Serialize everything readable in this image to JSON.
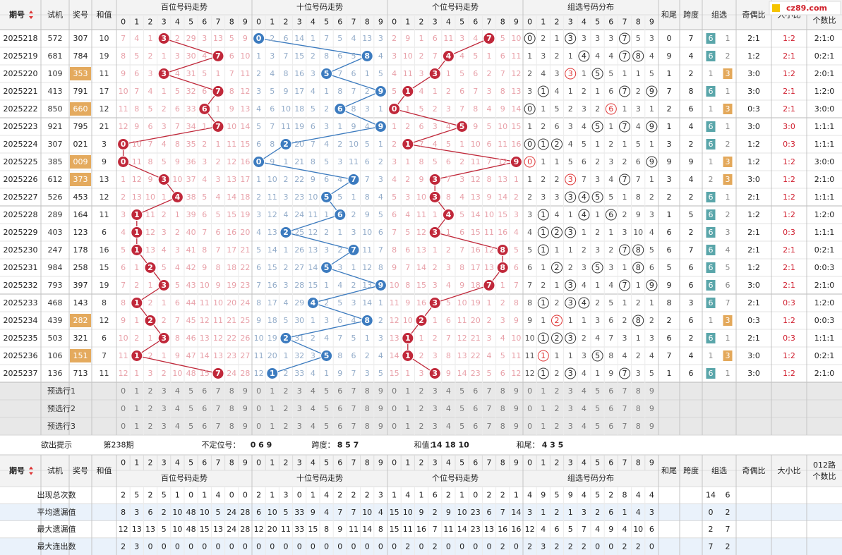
{
  "logo": "cz89.com",
  "headers": {
    "period": "期号",
    "test": "试机",
    "draw": "奖号",
    "sum": "和值",
    "zones": [
      "百位号码走势",
      "十位号码走势",
      "个位号码走势",
      "组选号码分布"
    ],
    "tail": "和尾",
    "span": "跨度",
    "zx": "组选",
    "oe": "奇偶比",
    "bs": "大小比",
    "r012": [
      "012路",
      "个数比"
    ]
  },
  "digits": [
    0,
    1,
    2,
    3,
    4,
    5,
    6,
    7,
    8,
    9
  ],
  "rows": [
    {
      "period": "2025218",
      "test": "572",
      "draw": "307",
      "sum": 10,
      "hundreds": [
        7,
        4,
        1,
        3,
        2,
        29,
        3,
        13,
        5,
        9
      ],
      "tens": [
        0,
        2,
        6,
        14,
        1,
        7,
        5,
        4,
        13,
        3
      ],
      "ones": [
        2,
        9,
        1,
        6,
        11,
        3,
        4,
        7,
        5,
        10
      ],
      "group": [
        0,
        2,
        1,
        3,
        3,
        3,
        3,
        7,
        5,
        3
      ],
      "tail": 0,
      "span": 7,
      "zx": [
        6,
        1
      ],
      "oe": "2:1",
      "bs": "1:2",
      "r012": "2:1:0"
    },
    {
      "period": "2025219",
      "test": "681",
      "draw": "784",
      "sum": 19,
      "hundreds": [
        8,
        5,
        2,
        1,
        3,
        30,
        4,
        7,
        6,
        10
      ],
      "tens": [
        1,
        3,
        7,
        15,
        2,
        8,
        6,
        5,
        8,
        4
      ],
      "ones": [
        3,
        10,
        2,
        7,
        4,
        4,
        5,
        1,
        6,
        11
      ],
      "group": [
        1,
        3,
        2,
        1,
        4,
        4,
        4,
        7,
        8,
        4
      ],
      "tail": 9,
      "span": 4,
      "zx": [
        6,
        2
      ],
      "oe": "1:2",
      "bs": "2:1",
      "r012": "0:2:1"
    },
    {
      "period": "2025220",
      "test": "109",
      "draw": "353",
      "sum": 11,
      "hundreds": [
        9,
        6,
        3,
        3,
        4,
        31,
        5,
        1,
        7,
        11
      ],
      "tens": [
        2,
        4,
        8,
        16,
        3,
        5,
        7,
        6,
        1,
        5
      ],
      "ones": [
        4,
        11,
        3,
        3,
        1,
        5,
        6,
        2,
        7,
        12
      ],
      "group": [
        2,
        4,
        3,
        3,
        1,
        5,
        5,
        1,
        1,
        5
      ],
      "tail": 1,
      "span": 2,
      "zx": [
        1,
        3
      ],
      "oe": "3:0",
      "bs": "1:2",
      "r012": "2:0:1"
    },
    {
      "period": "2025221",
      "test": "413",
      "draw": "791",
      "sum": 17,
      "hundreds": [
        10,
        7,
        4,
        1,
        5,
        32,
        6,
        7,
        8,
        12
      ],
      "tens": [
        3,
        5,
        9,
        17,
        4,
        1,
        8,
        7,
        2,
        9
      ],
      "ones": [
        5,
        1,
        4,
        1,
        2,
        6,
        7,
        3,
        8,
        13
      ],
      "group": [
        3,
        1,
        4,
        1,
        2,
        1,
        6,
        7,
        2,
        9
      ],
      "tail": 7,
      "span": 8,
      "zx": [
        6,
        1
      ],
      "oe": "3:0",
      "bs": "2:1",
      "r012": "1:2:0"
    },
    {
      "period": "2025222",
      "test": "850",
      "draw": "660",
      "sum": 12,
      "hundreds": [
        11,
        8,
        5,
        2,
        6,
        33,
        6,
        1,
        9,
        13
      ],
      "tens": [
        4,
        6,
        10,
        18,
        5,
        2,
        6,
        8,
        3,
        1
      ],
      "ones": [
        0,
        1,
        5,
        2,
        3,
        7,
        8,
        4,
        9,
        14
      ],
      "group": [
        0,
        1,
        5,
        2,
        3,
        2,
        6,
        1,
        3,
        1
      ],
      "tail": 2,
      "span": 6,
      "zx": [
        1,
        3
      ],
      "oe": "0:3",
      "bs": "2:1",
      "r012": "3:0:0"
    },
    {
      "period": "2025223",
      "test": "921",
      "draw": "795",
      "sum": 21,
      "hundreds": [
        12,
        9,
        6,
        3,
        7,
        34,
        1,
        7,
        10,
        14
      ],
      "tens": [
        5,
        7,
        11,
        19,
        6,
        3,
        1,
        9,
        4,
        9
      ],
      "ones": [
        1,
        2,
        6,
        3,
        4,
        5,
        9,
        5,
        10,
        15
      ],
      "group": [
        1,
        2,
        6,
        3,
        4,
        5,
        1,
        7,
        4,
        9
      ],
      "tail": 1,
      "span": 4,
      "zx": [
        6,
        1
      ],
      "oe": "3:0",
      "bs": "3:0",
      "r012": "1:1:1"
    },
    {
      "period": "2025224",
      "test": "307",
      "draw": "021",
      "sum": 3,
      "hundreds": [
        0,
        10,
        7,
        4,
        8,
        35,
        2,
        1,
        11,
        15
      ],
      "tens": [
        6,
        8,
        2,
        20,
        7,
        4,
        2,
        10,
        5,
        1
      ],
      "ones": [
        2,
        1,
        7,
        4,
        5,
        1,
        10,
        6,
        11,
        16
      ],
      "group": [
        0,
        1,
        2,
        4,
        5,
        1,
        2,
        1,
        5,
        1
      ],
      "tail": 3,
      "span": 2,
      "zx": [
        6,
        2
      ],
      "oe": "1:2",
      "bs": "0:3",
      "r012": "1:1:1"
    },
    {
      "period": "2025225",
      "test": "385",
      "draw": "009",
      "sum": 9,
      "hundreds": [
        0,
        11,
        8,
        5,
        9,
        36,
        3,
        2,
        12,
        16
      ],
      "tens": [
        0,
        9,
        1,
        21,
        8,
        5,
        3,
        11,
        6,
        2
      ],
      "ones": [
        3,
        1,
        8,
        5,
        6,
        2,
        11,
        7,
        12,
        9
      ],
      "group": [
        0,
        1,
        1,
        5,
        6,
        2,
        3,
        2,
        6,
        9
      ],
      "tail": 9,
      "span": 9,
      "zx": [
        1,
        3
      ],
      "oe": "1:2",
      "bs": "1:2",
      "r012": "3:0:0"
    },
    {
      "period": "2025226",
      "test": "612",
      "draw": "373",
      "sum": 13,
      "hundreds": [
        1,
        12,
        9,
        3,
        10,
        37,
        4,
        3,
        13,
        17
      ],
      "tens": [
        1,
        10,
        2,
        22,
        9,
        6,
        4,
        7,
        7,
        3
      ],
      "ones": [
        4,
        2,
        9,
        3,
        7,
        3,
        12,
        8,
        13,
        1
      ],
      "group": [
        1,
        2,
        2,
        3,
        7,
        3,
        4,
        7,
        7,
        1
      ],
      "tail": 3,
      "span": 4,
      "zx": [
        2,
        3
      ],
      "oe": "3:0",
      "bs": "1:2",
      "r012": "2:1:0"
    },
    {
      "period": "2025227",
      "test": "526",
      "draw": "453",
      "sum": 12,
      "hundreds": [
        2,
        13,
        10,
        1,
        4,
        38,
        5,
        4,
        14,
        18
      ],
      "tens": [
        2,
        11,
        3,
        23,
        10,
        5,
        5,
        1,
        8,
        4
      ],
      "ones": [
        5,
        3,
        10,
        3,
        8,
        4,
        13,
        9,
        14,
        2
      ],
      "group": [
        2,
        3,
        3,
        3,
        4,
        5,
        5,
        1,
        8,
        2
      ],
      "tail": 2,
      "span": 2,
      "zx": [
        6,
        1
      ],
      "oe": "2:1",
      "bs": "1:2",
      "r012": "1:1:1"
    },
    {
      "period": "2025228",
      "test": "289",
      "draw": "164",
      "sum": 11,
      "hundreds": [
        3,
        1,
        11,
        2,
        1,
        39,
        6,
        5,
        15,
        19
      ],
      "tens": [
        3,
        12,
        4,
        24,
        11,
        1,
        6,
        2,
        9,
        5
      ],
      "ones": [
        6,
        4,
        11,
        1,
        4,
        5,
        14,
        10,
        15,
        3
      ],
      "group": [
        3,
        1,
        4,
        1,
        4,
        1,
        6,
        2,
        9,
        3
      ],
      "tail": 1,
      "span": 5,
      "zx": [
        6,
        2
      ],
      "oe": "1:2",
      "bs": "1:2",
      "r012": "1:2:0"
    },
    {
      "period": "2025229",
      "test": "403",
      "draw": "123",
      "sum": 6,
      "hundreds": [
        4,
        1,
        12,
        3,
        2,
        40,
        7,
        6,
        16,
        20
      ],
      "tens": [
        4,
        13,
        2,
        25,
        12,
        2,
        1,
        3,
        10,
        6
      ],
      "ones": [
        7,
        5,
        12,
        3,
        1,
        6,
        15,
        11,
        16,
        4
      ],
      "group": [
        4,
        1,
        2,
        3,
        1,
        2,
        1,
        3,
        10,
        4
      ],
      "tail": 6,
      "span": 2,
      "zx": [
        6,
        3
      ],
      "oe": "2:1",
      "bs": "0:3",
      "r012": "1:1:1"
    },
    {
      "period": "2025230",
      "test": "247",
      "draw": "178",
      "sum": 16,
      "hundreds": [
        5,
        1,
        13,
        4,
        3,
        41,
        8,
        7,
        17,
        21
      ],
      "tens": [
        5,
        14,
        1,
        26,
        13,
        3,
        2,
        7,
        11,
        7
      ],
      "ones": [
        8,
        6,
        13,
        1,
        2,
        7,
        16,
        12,
        8,
        5
      ],
      "group": [
        5,
        1,
        1,
        1,
        2,
        3,
        2,
        7,
        8,
        5
      ],
      "tail": 6,
      "span": 7,
      "zx": [
        6,
        4
      ],
      "oe": "2:1",
      "bs": "2:1",
      "r012": "0:2:1"
    },
    {
      "period": "2025231",
      "test": "984",
      "draw": "258",
      "sum": 15,
      "hundreds": [
        6,
        1,
        2,
        5,
        4,
        42,
        9,
        8,
        18,
        22
      ],
      "tens": [
        6,
        15,
        2,
        27,
        14,
        5,
        3,
        1,
        12,
        8
      ],
      "ones": [
        9,
        7,
        14,
        2,
        3,
        8,
        17,
        13,
        8,
        6
      ],
      "group": [
        6,
        1,
        2,
        2,
        3,
        5,
        3,
        1,
        8,
        6
      ],
      "tail": 5,
      "span": 6,
      "zx": [
        6,
        5
      ],
      "oe": "1:2",
      "bs": "2:1",
      "r012": "0:0:3"
    },
    {
      "period": "2025232",
      "test": "793",
      "draw": "397",
      "sum": 19,
      "hundreds": [
        7,
        2,
        1,
        3,
        5,
        43,
        10,
        9,
        19,
        23
      ],
      "tens": [
        7,
        16,
        3,
        28,
        15,
        1,
        4,
        2,
        13,
        9
      ],
      "ones": [
        10,
        8,
        15,
        3,
        4,
        9,
        18,
        7,
        1,
        7
      ],
      "group": [
        7,
        2,
        1,
        3,
        4,
        1,
        4,
        7,
        1,
        9
      ],
      "tail": 9,
      "span": 6,
      "zx": [
        6,
        6
      ],
      "oe": "3:0",
      "bs": "2:1",
      "r012": "2:1:0"
    },
    {
      "period": "2025233",
      "test": "468",
      "draw": "143",
      "sum": 8,
      "hundreds": [
        8,
        1,
        2,
        1,
        6,
        44,
        11,
        10,
        20,
        24
      ],
      "tens": [
        8,
        17,
        4,
        29,
        4,
        2,
        5,
        3,
        14,
        1
      ],
      "ones": [
        11,
        9,
        16,
        3,
        5,
        10,
        19,
        1,
        2,
        8
      ],
      "group": [
        8,
        1,
        2,
        3,
        4,
        2,
        5,
        1,
        2,
        1
      ],
      "tail": 8,
      "span": 3,
      "zx": [
        6,
        7
      ],
      "oe": "2:1",
      "bs": "0:3",
      "r012": "1:2:0"
    },
    {
      "period": "2025234",
      "test": "439",
      "draw": "282",
      "sum": 12,
      "hundreds": [
        9,
        1,
        2,
        2,
        7,
        45,
        12,
        11,
        21,
        25
      ],
      "tens": [
        9,
        18,
        5,
        30,
        1,
        3,
        6,
        4,
        8,
        2
      ],
      "ones": [
        12,
        10,
        2,
        1,
        6,
        11,
        20,
        2,
        3,
        9
      ],
      "group": [
        9,
        1,
        2,
        1,
        1,
        3,
        6,
        2,
        8,
        2
      ],
      "tail": 2,
      "span": 6,
      "zx": [
        1,
        3
      ],
      "oe": "0:3",
      "bs": "1:2",
      "r012": "0:0:3"
    },
    {
      "period": "2025235",
      "test": "503",
      "draw": "321",
      "sum": 6,
      "hundreds": [
        10,
        2,
        1,
        3,
        8,
        46,
        13,
        12,
        22,
        26
      ],
      "tens": [
        10,
        19,
        2,
        31,
        2,
        4,
        7,
        5,
        1,
        3
      ],
      "ones": [
        13,
        1,
        1,
        2,
        7,
        12,
        21,
        3,
        4,
        10
      ],
      "group": [
        10,
        1,
        2,
        3,
        2,
        4,
        7,
        3,
        1,
        3
      ],
      "tail": 6,
      "span": 2,
      "zx": [
        6,
        1
      ],
      "oe": "2:1",
      "bs": "0:3",
      "r012": "1:1:1"
    },
    {
      "period": "2025236",
      "test": "106",
      "draw": "151",
      "sum": 7,
      "hundreds": [
        11,
        1,
        2,
        1,
        9,
        47,
        14,
        13,
        23,
        27
      ],
      "tens": [
        11,
        20,
        1,
        32,
        3,
        5,
        8,
        6,
        2,
        4
      ],
      "ones": [
        14,
        1,
        2,
        3,
        8,
        13,
        22,
        4,
        5,
        11
      ],
      "group": [
        11,
        1,
        1,
        1,
        3,
        5,
        8,
        4,
        2,
        4
      ],
      "tail": 7,
      "span": 4,
      "zx": [
        1,
        3
      ],
      "oe": "3:0",
      "bs": "1:2",
      "r012": "0:2:1"
    },
    {
      "period": "2025237",
      "test": "136",
      "draw": "713",
      "sum": 11,
      "hundreds": [
        12,
        1,
        3,
        2,
        10,
        48,
        15,
        7,
        24,
        28
      ],
      "tens": [
        12,
        1,
        2,
        33,
        4,
        1,
        9,
        7,
        3,
        5
      ],
      "ones": [
        15,
        1,
        3,
        3,
        9,
        14,
        23,
        5,
        6,
        12
      ],
      "group": [
        12,
        1,
        2,
        3,
        4,
        1,
        9,
        7,
        3,
        5
      ],
      "tail": 1,
      "span": 6,
      "zx": [
        6,
        1
      ],
      "oe": "3:0",
      "bs": "1:2",
      "r012": "2:1:0"
    }
  ],
  "preselect": [
    {
      "label": "预选行1"
    },
    {
      "label": "预选行2"
    },
    {
      "label": "预选行3"
    }
  ],
  "hint": {
    "label": "欲出提示",
    "issue": "第238期",
    "items": [
      {
        "name": "不定位号：",
        "value": "0 6 9"
      },
      {
        "name": "跨度：",
        "value": "8 5 7"
      },
      {
        "name": "和值：",
        "value": "14 18 10"
      },
      {
        "name": "和尾：",
        "value": "4 3 5"
      }
    ]
  },
  "stats": [
    {
      "label": "出现总次数",
      "hundreds": [
        2,
        5,
        2,
        5,
        1,
        0,
        1,
        4,
        0,
        0
      ],
      "tens": [
        2,
        1,
        3,
        0,
        1,
        4,
        2,
        2,
        2,
        3
      ],
      "ones": [
        1,
        4,
        1,
        6,
        2,
        1,
        0,
        2,
        2,
        1
      ],
      "group": [
        4,
        9,
        5,
        9,
        4,
        5,
        2,
        8,
        4,
        4
      ],
      "zx": [
        14,
        6
      ]
    },
    {
      "label": "平均遗漏值",
      "hundreds": [
        8,
        3,
        6,
        2,
        10,
        48,
        10,
        5,
        24,
        28
      ],
      "tens": [
        6,
        10,
        5,
        33,
        9,
        4,
        7,
        7,
        10,
        4
      ],
      "ones": [
        15,
        10,
        9,
        2,
        9,
        10,
        23,
        6,
        7,
        14
      ],
      "group": [
        3,
        1,
        2,
        1,
        3,
        2,
        6,
        1,
        4,
        3
      ],
      "zx": [
        0,
        2
      ]
    },
    {
      "label": "最大遗漏值",
      "hundreds": [
        12,
        13,
        13,
        5,
        10,
        48,
        15,
        13,
        24,
        28
      ],
      "tens": [
        12,
        20,
        11,
        33,
        15,
        8,
        9,
        11,
        14,
        8
      ],
      "ones": [
        15,
        11,
        16,
        7,
        11,
        14,
        23,
        13,
        16,
        16
      ],
      "group": [
        12,
        4,
        6,
        5,
        7,
        4,
        9,
        4,
        10,
        6
      ],
      "zx": [
        2,
        7
      ]
    },
    {
      "label": "最大连出数",
      "hundreds": [
        2,
        3,
        0,
        0,
        0,
        0,
        0,
        0,
        0,
        0
      ],
      "tens": [
        0,
        0,
        0,
        0,
        0,
        0,
        0,
        0,
        0,
        0
      ],
      "ones": [
        0,
        2,
        0,
        2,
        0,
        0,
        0,
        0,
        2,
        0
      ],
      "group": [
        2,
        3,
        2,
        2,
        2,
        0,
        0,
        2,
        2,
        0
      ],
      "zx": [
        7,
        2
      ]
    }
  ]
}
